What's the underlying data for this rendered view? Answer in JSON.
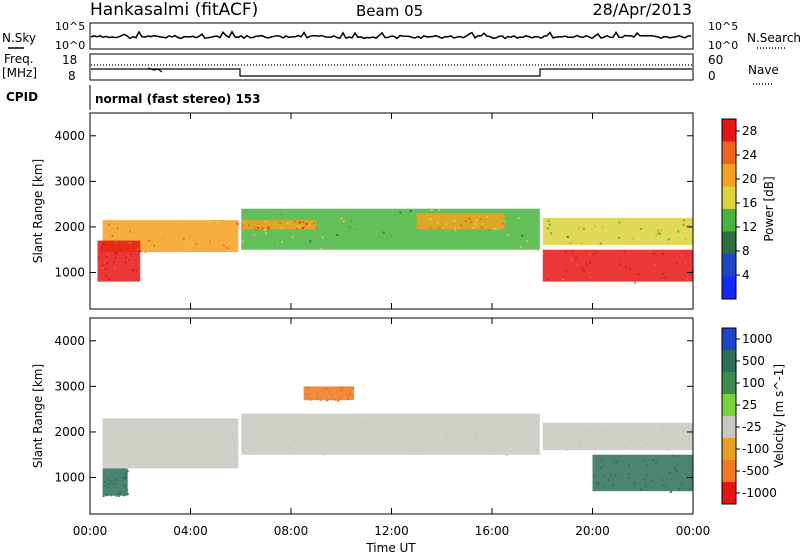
{
  "header": {
    "station": "Hankasalmi (fitACF)",
    "beam": "Beam 05",
    "date": "28/Apr/2013"
  },
  "noise_panel": {
    "left_label": "N.Sky",
    "right_label": "N.Search",
    "left_ticks": [
      "10^5",
      "10^0"
    ],
    "right_ticks": [
      "10^5",
      "10^0"
    ]
  },
  "freq_panel": {
    "left_label_1": "Freq.",
    "left_label_2": "[MHz]",
    "right_label": "Nave",
    "left_ticks": [
      "18",
      "8"
    ],
    "right_ticks": [
      "60",
      "0"
    ]
  },
  "cpid": {
    "label": "CPID",
    "mode_text": "normal (fast stereo) 153"
  },
  "colors": {
    "power": [
      "#1428ff",
      "#1e46c8",
      "#2d6e3c",
      "#46b43c",
      "#dcd23c",
      "#f5a01e",
      "#f0641e",
      "#e61414"
    ],
    "velocity": [
      "#1e46c8",
      "#2d6e5a",
      "#3c8c50",
      "#78d23c",
      "#c8c8c0",
      "#e6a01e",
      "#f0781e",
      "#e61414"
    ]
  },
  "chart_data": [
    {
      "type": "heatmap",
      "title": "",
      "xlabel": "Time UT",
      "ylabel": "Slant Range [km]",
      "xlim": [
        0,
        24
      ],
      "ylim": [
        200,
        4500
      ],
      "x_ticks": [
        "00:00",
        "04:00",
        "08:00",
        "12:00",
        "16:00",
        "20:00",
        "00:00"
      ],
      "y_ticks": [
        "1000",
        "2000",
        "3000",
        "4000"
      ],
      "colorbar": {
        "label": "Power [dB]",
        "ticks": [
          "4",
          "8",
          "12",
          "16",
          "20",
          "24",
          "28"
        ],
        "range": [
          0,
          30
        ]
      },
      "regions": [
        {
          "t0": 0.5,
          "t1": 5.9,
          "r0": 1450,
          "r1": 2150,
          "value": 20
        },
        {
          "t0": 0.3,
          "t1": 2.0,
          "r0": 800,
          "r1": 1700,
          "value": 27
        },
        {
          "t0": 6.0,
          "t1": 17.9,
          "r0": 1500,
          "r1": 2400,
          "value": 14
        },
        {
          "t0": 6.0,
          "t1": 9.0,
          "r0": 1950,
          "r1": 2150,
          "value": 22
        },
        {
          "t0": 13.0,
          "t1": 16.5,
          "r0": 1950,
          "r1": 2300,
          "value": 21
        },
        {
          "t0": 18.0,
          "t1": 24.0,
          "r0": 800,
          "r1": 1500,
          "value": 27
        },
        {
          "t0": 18.0,
          "t1": 24.0,
          "r0": 1600,
          "r1": 2200,
          "value": 16
        }
      ]
    },
    {
      "type": "heatmap",
      "title": "",
      "xlabel": "Time UT",
      "ylabel": "Slant Range [km]",
      "xlim": [
        0,
        24
      ],
      "ylim": [
        200,
        4500
      ],
      "x_ticks": [
        "00:00",
        "04:00",
        "08:00",
        "12:00",
        "16:00",
        "20:00",
        "00:00"
      ],
      "y_ticks": [
        "1000",
        "2000",
        "3000",
        "4000"
      ],
      "colorbar": {
        "label": "Velocity [m s^-1]",
        "ticks": [
          "1000",
          "500",
          "100",
          "25",
          "-25",
          "-100",
          "-500",
          "-1000"
        ],
        "range": [
          -1000,
          1000
        ]
      },
      "regions": [
        {
          "t0": 0.5,
          "t1": 5.9,
          "r0": 1200,
          "r1": 2300,
          "value": 0
        },
        {
          "t0": 6.0,
          "t1": 17.9,
          "r0": 1500,
          "r1": 2400,
          "value": 0
        },
        {
          "t0": 8.5,
          "t1": 10.5,
          "r0": 2700,
          "r1": 3000,
          "value": -300
        },
        {
          "t0": 0.5,
          "t1": 1.5,
          "r0": 600,
          "r1": 1200,
          "value": 100
        },
        {
          "t0": 20.0,
          "t1": 24.0,
          "r0": 700,
          "r1": 1500,
          "value": 300
        },
        {
          "t0": 18.0,
          "t1": 24.0,
          "r0": 1600,
          "r1": 2200,
          "value": 0
        }
      ]
    }
  ]
}
